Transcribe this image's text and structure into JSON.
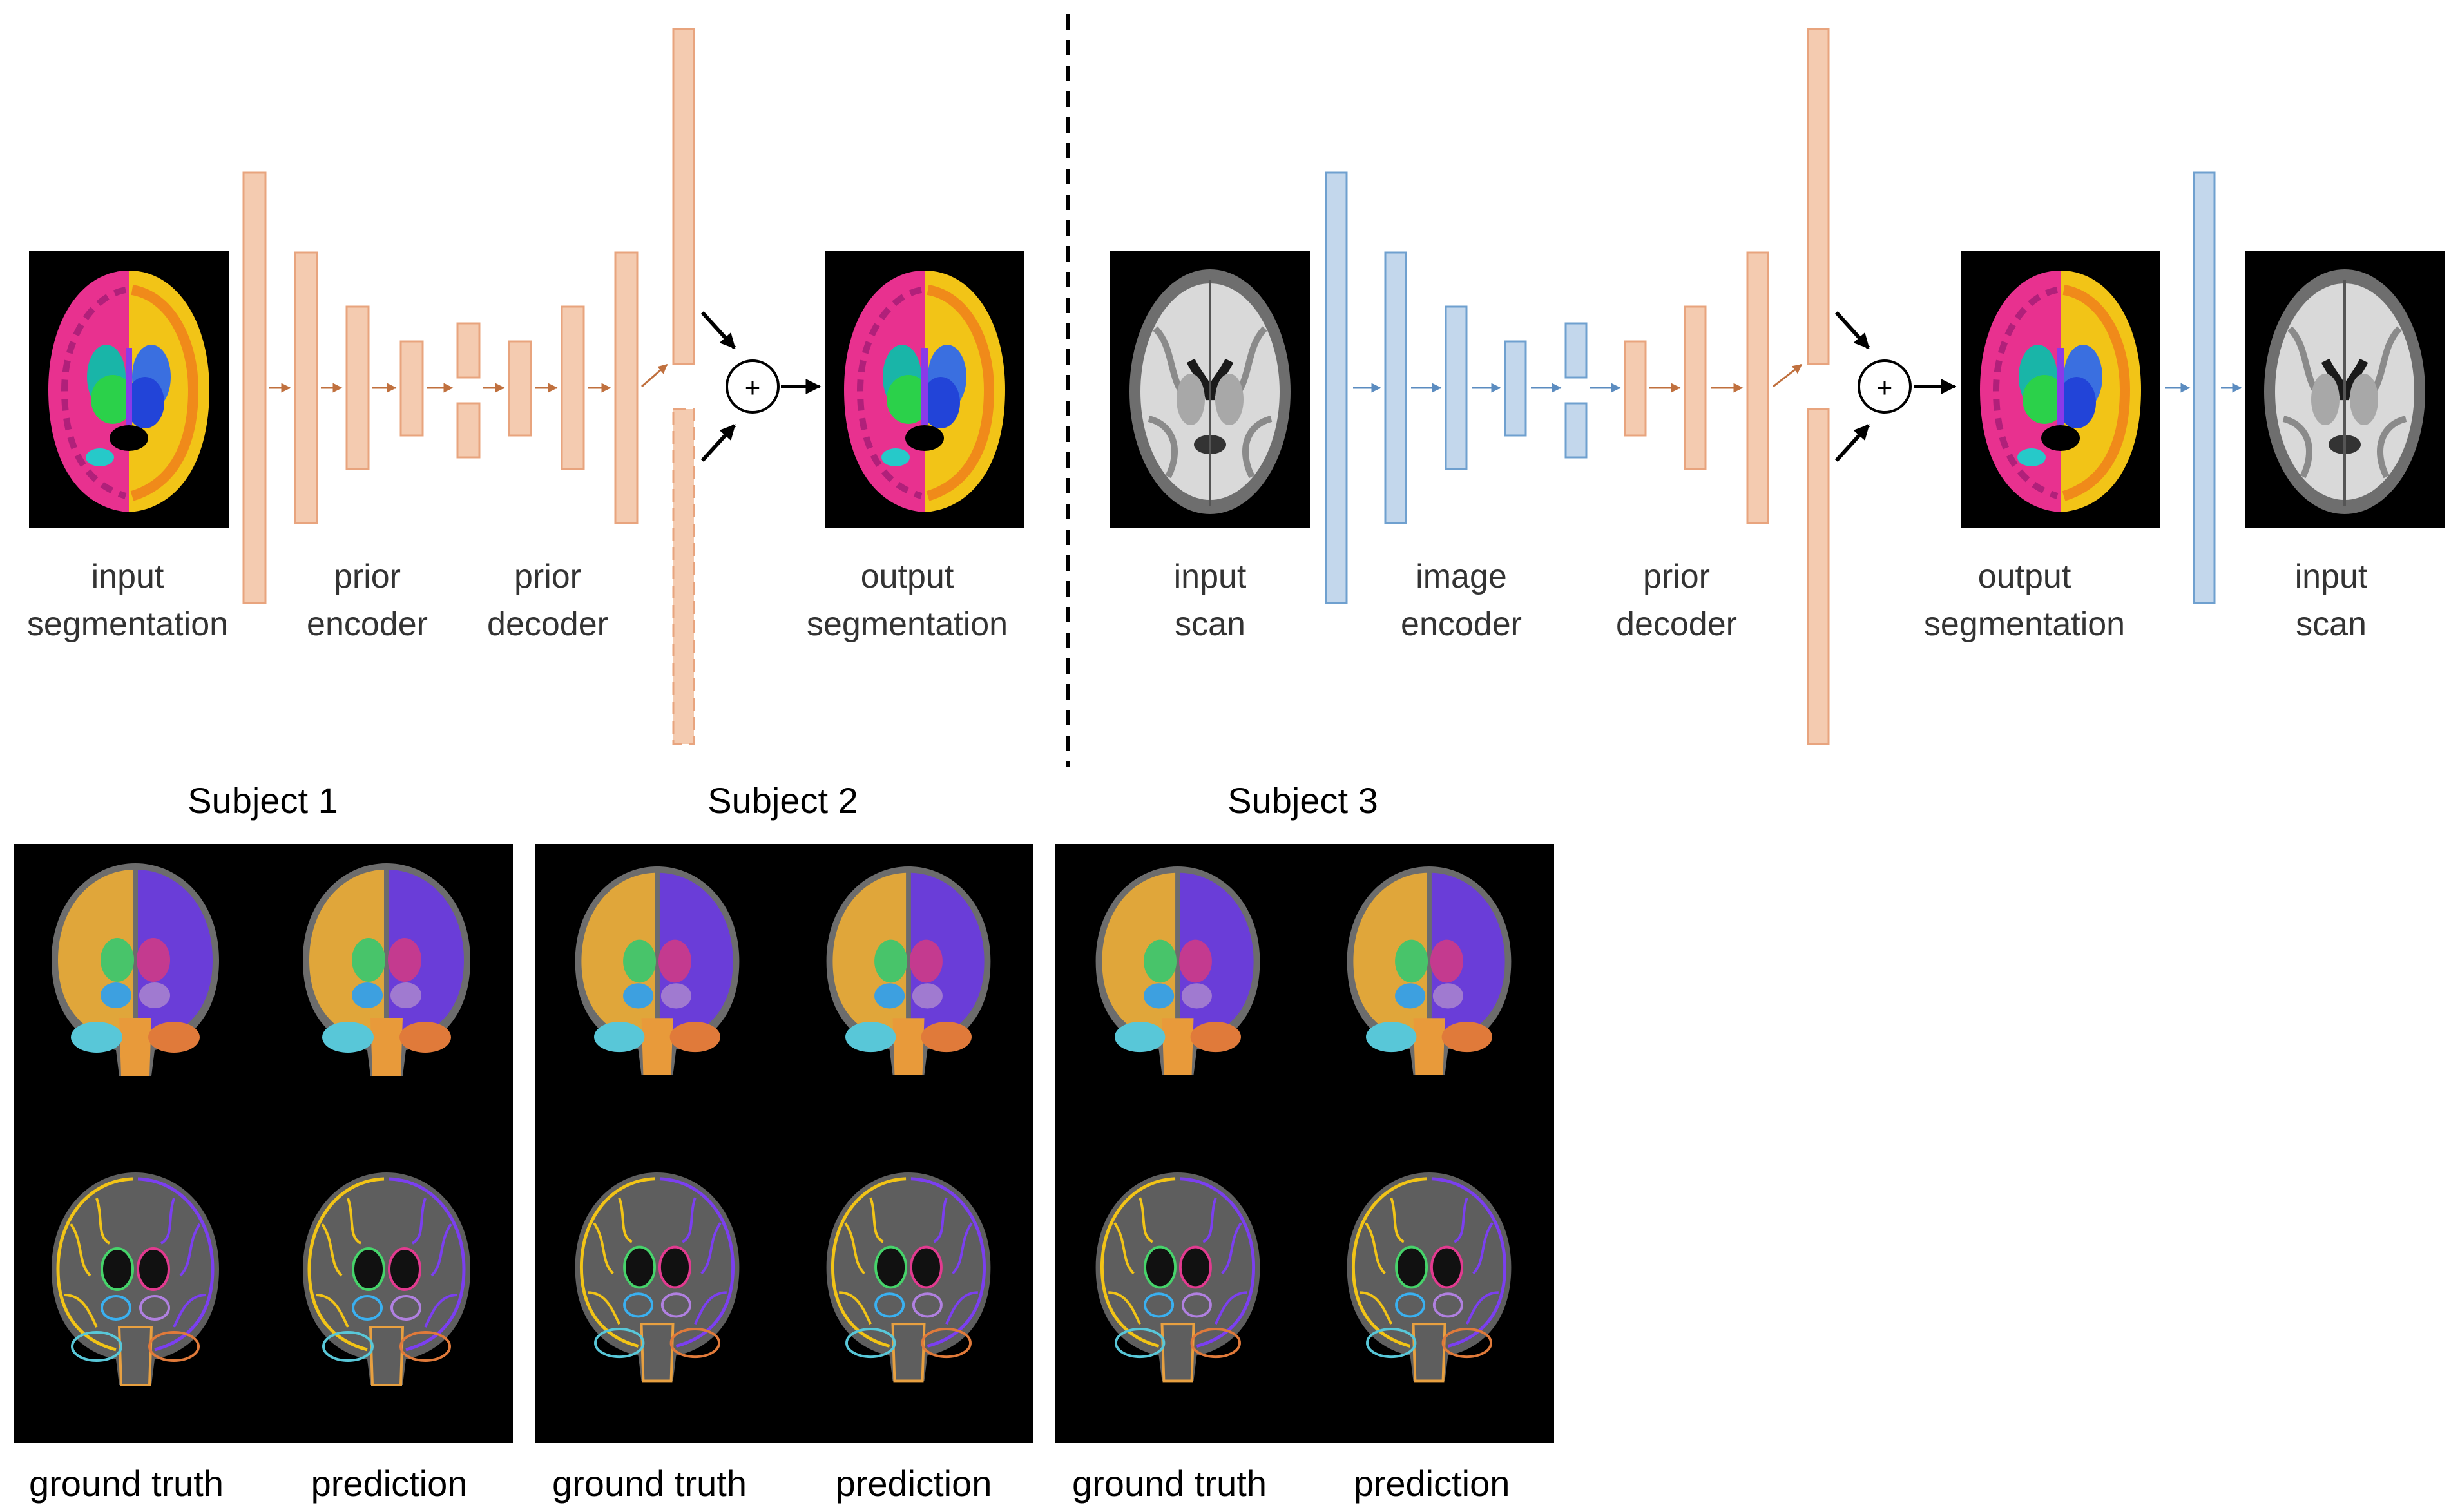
{
  "colors": {
    "prior": "#f4cbb0",
    "prior_stroke": "#e8a47e",
    "image": "#c3d7ec",
    "image_stroke": "#6fa0cf",
    "orange_arrow": "#c0703e",
    "blue_arrow": "#5b8cc0",
    "black": "#000000"
  },
  "left_pipeline": {
    "input_label_1": "input",
    "input_label_2": "segmentation",
    "encoder_label_1": "prior",
    "encoder_label_2": "encoder",
    "decoder_label_1": "prior",
    "decoder_label_2": "decoder",
    "output_label_1": "output",
    "output_label_2": "segmentation",
    "plus_symbol": "+"
  },
  "right_pipeline": {
    "input_label_1": "input",
    "input_label_2": "scan",
    "encoder_label_1": "image",
    "encoder_label_2": "encoder",
    "decoder_label_1": "prior",
    "decoder_label_2": "decoder",
    "output_label_1": "output",
    "output_label_2": "segmentation",
    "recon_label_1": "input",
    "recon_label_2": "scan",
    "plus_symbol": "+"
  },
  "results": {
    "subjects": [
      {
        "title": "Subject 1",
        "gt_label": "ground truth",
        "pred_label": "prediction"
      },
      {
        "title": "Subject 2",
        "gt_label": "ground truth",
        "pred_label": "prediction"
      },
      {
        "title": "Subject 3",
        "gt_label": "ground truth",
        "pred_label": "prediction"
      }
    ]
  }
}
